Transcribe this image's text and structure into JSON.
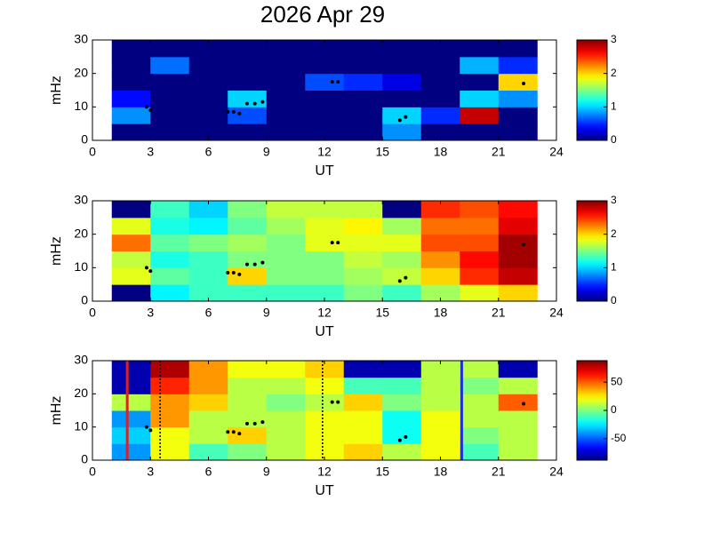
{
  "title": "2026 Apr 29",
  "chart_data": [
    {
      "type": "heatmap",
      "xlabel": "UT",
      "ylabel": "mHz",
      "colormap": "jet",
      "xlim": [
        0,
        24
      ],
      "xticks": [
        0,
        3,
        6,
        9,
        12,
        15,
        18,
        21,
        24
      ],
      "ylim": [
        0,
        30
      ],
      "yticks": [
        0,
        10,
        20,
        30
      ],
      "xbins": [
        1,
        3,
        5,
        7,
        9,
        11,
        13,
        15,
        17,
        19,
        21,
        23
      ],
      "ybins": [
        0,
        5,
        10,
        15,
        20,
        25,
        30
      ],
      "z": [
        [
          0,
          0,
          0,
          0,
          0,
          0,
          0,
          0.8,
          0,
          0,
          0
        ],
        [
          0.8,
          0,
          0,
          0.6,
          0,
          0,
          0,
          1.0,
          0.5,
          2.8,
          0
        ],
        [
          0.4,
          0,
          0,
          1.0,
          0,
          0,
          0,
          0,
          0,
          1.0,
          0.8
        ],
        [
          0,
          0,
          0,
          0,
          0,
          0.6,
          0.5,
          0.3,
          0,
          0,
          2.0
        ],
        [
          0,
          0.7,
          0,
          0,
          0,
          0,
          0,
          0,
          0,
          0.9,
          0.5
        ],
        [
          0,
          0,
          0,
          0,
          0,
          0,
          0,
          0,
          0,
          0,
          0
        ]
      ],
      "clim": [
        0,
        3
      ],
      "cticks": [
        0,
        1,
        2,
        3
      ],
      "points": {
        "color": "#000000",
        "x": [
          2.8,
          3.0,
          7.0,
          7.3,
          7.6,
          8.0,
          8.4,
          8.8,
          12.4,
          12.7,
          15.9,
          16.2,
          22.3
        ],
        "y": [
          10,
          9,
          8.5,
          8.5,
          8,
          11,
          11,
          11.5,
          17.5,
          17.5,
          6,
          7,
          17
        ]
      }
    },
    {
      "type": "heatmap",
      "xlabel": "UT",
      "ylabel": "mHz",
      "colormap": "jet",
      "xlim": [
        0,
        24
      ],
      "xticks": [
        0,
        3,
        6,
        9,
        12,
        15,
        18,
        21,
        24
      ],
      "ylim": [
        0,
        30
      ],
      "yticks": [
        0,
        10,
        20,
        30
      ],
      "xbins": [
        1,
        3,
        5,
        7,
        9,
        11,
        13,
        15,
        17,
        19,
        21,
        23
      ],
      "ybins": [
        0,
        5,
        10,
        15,
        20,
        25,
        30
      ],
      "z": [
        [
          0,
          1.1,
          1.3,
          1.3,
          1.3,
          1.3,
          1.5,
          1.3,
          1.6,
          1.8,
          2.0
        ],
        [
          1.8,
          1.4,
          1.3,
          2.0,
          1.5,
          1.5,
          1.6,
          1.7,
          2.0,
          2.5,
          2.8
        ],
        [
          1.7,
          1.2,
          1.3,
          1.5,
          1.5,
          1.5,
          1.7,
          1.6,
          2.2,
          2.6,
          2.9
        ],
        [
          2.3,
          1.4,
          1.5,
          1.6,
          1.5,
          1.8,
          1.8,
          1.8,
          2.4,
          2.4,
          2.9
        ],
        [
          1.8,
          1.2,
          1.1,
          1.4,
          1.6,
          1.8,
          1.9,
          1.6,
          2.3,
          2.3,
          2.7
        ],
        [
          0,
          1.3,
          1.0,
          1.5,
          1.7,
          1.7,
          1.7,
          0,
          2.5,
          2.4,
          2.6
        ]
      ],
      "clim": [
        0,
        3
      ],
      "cticks": [
        0,
        1,
        2,
        3
      ],
      "points": {
        "color": "#000000",
        "x": [
          2.8,
          3.0,
          7.0,
          7.3,
          7.6,
          8.0,
          8.4,
          8.8,
          12.4,
          12.7,
          15.9,
          16.2,
          22.3
        ],
        "y": [
          10,
          9,
          8.5,
          8.5,
          8,
          11,
          11,
          11.5,
          17.5,
          17.5,
          6,
          7,
          17
        ]
      }
    },
    {
      "type": "heatmap",
      "xlabel": "UT",
      "ylabel": "mHz",
      "colormap": "jet",
      "xlim": [
        0,
        24
      ],
      "xticks": [
        0,
        3,
        6,
        9,
        12,
        15,
        18,
        21,
        24
      ],
      "ylim": [
        0,
        30
      ],
      "yticks": [
        0,
        10,
        20,
        30
      ],
      "xbins": [
        1,
        3,
        5,
        7,
        9,
        11,
        13,
        15,
        17,
        19,
        21,
        23
      ],
      "ybins": [
        0,
        5,
        10,
        15,
        20,
        25,
        30
      ],
      "z": [
        [
          -40,
          20,
          -10,
          0,
          10,
          20,
          30,
          10,
          20,
          -10,
          10
        ],
        [
          -30,
          20,
          10,
          30,
          10,
          20,
          20,
          -20,
          20,
          0,
          10
        ],
        [
          -40,
          40,
          10,
          10,
          10,
          20,
          20,
          -20,
          20,
          10,
          10
        ],
        [
          10,
          40,
          30,
          10,
          0,
          10,
          30,
          0,
          10,
          10,
          50
        ],
        [
          -80,
          60,
          40,
          10,
          10,
          20,
          -10,
          -10,
          10,
          0,
          10
        ],
        [
          -80,
          80,
          40,
          20,
          20,
          30,
          -80,
          -80,
          10,
          10,
          -80
        ]
      ],
      "clim": [
        -88,
        88
      ],
      "cticks": [
        -50,
        0,
        50
      ],
      "points": {
        "color": "#000000",
        "x": [
          2.8,
          3.0,
          7.0,
          7.3,
          7.6,
          8.0,
          8.4,
          8.8,
          12.4,
          12.7,
          15.9,
          16.2,
          22.3
        ],
        "y": [
          10,
          9,
          8.5,
          8.5,
          8,
          11,
          11,
          11.5,
          17.5,
          17.5,
          6,
          7,
          17
        ]
      },
      "vlines": [
        {
          "x": 1.8,
          "color": "#e02020",
          "style": "solid"
        },
        {
          "x": 19.1,
          "color": "#2030e0",
          "style": "solid"
        },
        {
          "x": 3.5,
          "color": "#000000",
          "style": "dotted"
        },
        {
          "x": 11.9,
          "color": "#000000",
          "style": "dotted"
        }
      ]
    }
  ]
}
